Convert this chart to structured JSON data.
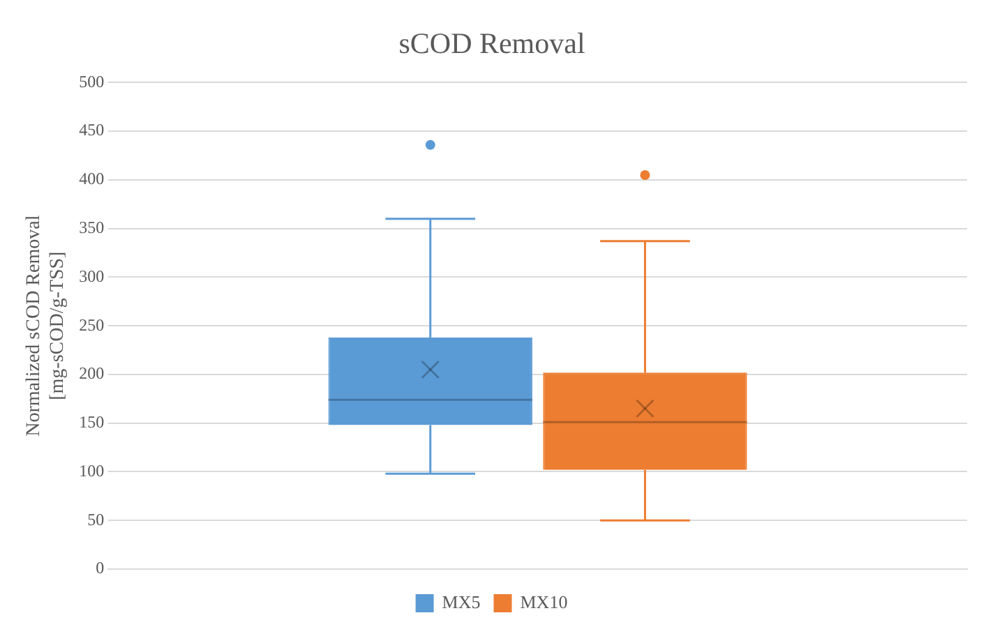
{
  "chart_data": {
    "type": "box",
    "title": "sCOD Removal",
    "ylabel": "Normalized sCOD Removal [mg-sCOD/g-TSS]",
    "categories": [
      null
    ],
    "series": [
      {
        "name": "MX5",
        "color": "#5b9bd5",
        "boxes": [
          {
            "low": 98,
            "q1": 148,
            "median": 174,
            "q3": 238,
            "high": 360,
            "mean": 205,
            "outliers": [
              436
            ]
          }
        ]
      },
      {
        "name": "MX10",
        "color": "#ed7d31",
        "boxes": [
          {
            "low": 50,
            "q1": 102,
            "median": 151,
            "q3": 202,
            "high": 337,
            "mean": 165,
            "outliers": [
              405
            ]
          }
        ]
      }
    ],
    "ylim": [
      0,
      500
    ],
    "yticks": [
      0,
      50,
      100,
      150,
      200,
      250,
      300,
      350,
      400,
      450,
      500
    ],
    "grid": "y",
    "legend": "bottom"
  }
}
